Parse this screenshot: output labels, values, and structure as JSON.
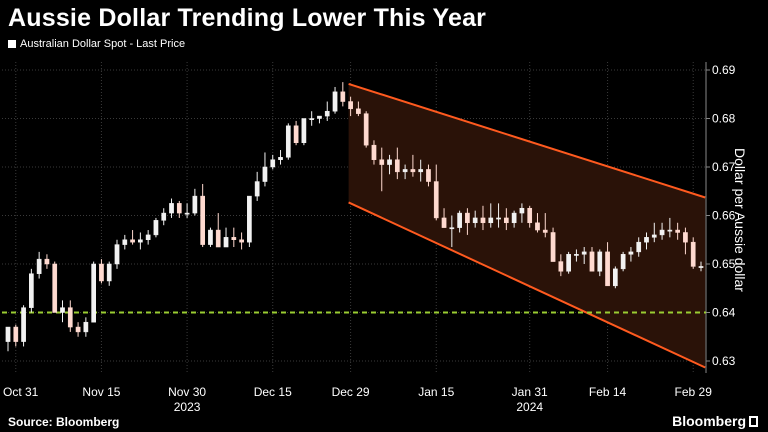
{
  "header": {
    "title": "Aussie Dollar Trending Lower This Year"
  },
  "footer": {
    "source": "Source: Bloomberg",
    "brand": "Bloomberg"
  },
  "chart_data": {
    "type": "candlestick",
    "legend": [
      "Australian Dollar Spot - Last Price"
    ],
    "legend_placement": "top-left",
    "ylabel": "Dollar per Aussie dollar",
    "ylim": [
      0.63,
      0.69
    ],
    "y_ticks": [
      "0.69",
      "0.68",
      "0.67",
      "0.66",
      "0.65",
      "0.64",
      "0.63"
    ],
    "grid": true,
    "x_ticks": [
      "Oct 31",
      "Nov 15",
      "Nov 30",
      "Dec 15",
      "Dec 29",
      "Jan 15",
      "Jan 31",
      "Feb 14",
      "Feb 29"
    ],
    "x_tick_years": [
      {
        "label": "2023",
        "under": "Nov 30"
      },
      {
        "label": "2024",
        "under": "Jan 31"
      }
    ],
    "reference_line": {
      "y": 0.64,
      "style": "dashed",
      "color": "#9acd32"
    },
    "trend_channel": {
      "start_date": "Dec 29",
      "end_date": "Feb 29",
      "upper": [
        0.687,
        0.6645
      ],
      "lower": [
        0.6625,
        0.6298
      ],
      "line_color": "#ff5a1f",
      "fill_color": "#2a1208"
    },
    "candle_colors": {
      "up": "#f2f2f2",
      "down": "#ffdad0"
    },
    "candles": [
      {
        "d": "Oct 30",
        "o": 0.634,
        "h": 0.637,
        "l": 0.632,
        "c": 0.637
      },
      {
        "d": "Oct 31",
        "o": 0.637,
        "h": 0.6375,
        "l": 0.633,
        "c": 0.634
      },
      {
        "d": "Nov 1",
        "o": 0.634,
        "h": 0.6415,
        "l": 0.633,
        "c": 0.641
      },
      {
        "d": "Nov 2",
        "o": 0.641,
        "h": 0.649,
        "l": 0.64,
        "c": 0.648
      },
      {
        "d": "Nov 3",
        "o": 0.648,
        "h": 0.6525,
        "l": 0.647,
        "c": 0.651
      },
      {
        "d": "Nov 6",
        "o": 0.651,
        "h": 0.652,
        "l": 0.649,
        "c": 0.65
      },
      {
        "d": "Nov 7",
        "o": 0.65,
        "h": 0.6505,
        "l": 0.64,
        "c": 0.64
      },
      {
        "d": "Nov 8",
        "o": 0.64,
        "h": 0.6425,
        "l": 0.638,
        "c": 0.641
      },
      {
        "d": "Nov 9",
        "o": 0.641,
        "h": 0.6425,
        "l": 0.636,
        "c": 0.637
      },
      {
        "d": "Nov 10",
        "o": 0.637,
        "h": 0.638,
        "l": 0.635,
        "c": 0.636
      },
      {
        "d": "Nov 13",
        "o": 0.636,
        "h": 0.639,
        "l": 0.635,
        "c": 0.638
      },
      {
        "d": "Nov 14",
        "o": 0.638,
        "h": 0.6505,
        "l": 0.638,
        "c": 0.65
      },
      {
        "d": "Nov 15",
        "o": 0.65,
        "h": 0.651,
        "l": 0.646,
        "c": 0.6465
      },
      {
        "d": "Nov 16",
        "o": 0.6465,
        "h": 0.6505,
        "l": 0.6455,
        "c": 0.65
      },
      {
        "d": "Nov 17",
        "o": 0.65,
        "h": 0.655,
        "l": 0.649,
        "c": 0.654
      },
      {
        "d": "Nov 20",
        "o": 0.654,
        "h": 0.656,
        "l": 0.653,
        "c": 0.655
      },
      {
        "d": "Nov 21",
        "o": 0.655,
        "h": 0.657,
        "l": 0.654,
        "c": 0.6545
      },
      {
        "d": "Nov 22",
        "o": 0.6545,
        "h": 0.6565,
        "l": 0.653,
        "c": 0.655
      },
      {
        "d": "Nov 23",
        "o": 0.655,
        "h": 0.657,
        "l": 0.654,
        "c": 0.656
      },
      {
        "d": "Nov 24",
        "o": 0.656,
        "h": 0.6595,
        "l": 0.6555,
        "c": 0.659
      },
      {
        "d": "Nov 27",
        "o": 0.659,
        "h": 0.6615,
        "l": 0.658,
        "c": 0.6605
      },
      {
        "d": "Nov 28",
        "o": 0.6605,
        "h": 0.6635,
        "l": 0.6595,
        "c": 0.6625
      },
      {
        "d": "Nov 29",
        "o": 0.6625,
        "h": 0.663,
        "l": 0.6595,
        "c": 0.6605
      },
      {
        "d": "Nov 30",
        "o": 0.6605,
        "h": 0.6625,
        "l": 0.6595,
        "c": 0.6605
      },
      {
        "d": "Dec 1",
        "o": 0.6605,
        "h": 0.6655,
        "l": 0.66,
        "c": 0.664
      },
      {
        "d": "Dec 4",
        "o": 0.664,
        "h": 0.6665,
        "l": 0.6535,
        "c": 0.654
      },
      {
        "d": "Dec 5",
        "o": 0.654,
        "h": 0.6575,
        "l": 0.6535,
        "c": 0.657
      },
      {
        "d": "Dec 6",
        "o": 0.657,
        "h": 0.6605,
        "l": 0.6535,
        "c": 0.6535
      },
      {
        "d": "Dec 7",
        "o": 0.6535,
        "h": 0.6575,
        "l": 0.6535,
        "c": 0.6555
      },
      {
        "d": "Dec 8",
        "o": 0.6555,
        "h": 0.6575,
        "l": 0.6535,
        "c": 0.655
      },
      {
        "d": "Dec 11",
        "o": 0.655,
        "h": 0.6565,
        "l": 0.653,
        "c": 0.6545
      },
      {
        "d": "Dec 12",
        "o": 0.6545,
        "h": 0.664,
        "l": 0.6535,
        "c": 0.664
      },
      {
        "d": "Dec 13",
        "o": 0.664,
        "h": 0.669,
        "l": 0.663,
        "c": 0.667
      },
      {
        "d": "Dec 14",
        "o": 0.667,
        "h": 0.673,
        "l": 0.666,
        "c": 0.67
      },
      {
        "d": "Dec 15",
        "o": 0.67,
        "h": 0.6725,
        "l": 0.6695,
        "c": 0.6715
      },
      {
        "d": "Dec 18",
        "o": 0.6715,
        "h": 0.6735,
        "l": 0.6705,
        "c": 0.672
      },
      {
        "d": "Dec 19",
        "o": 0.672,
        "h": 0.679,
        "l": 0.6715,
        "c": 0.6785
      },
      {
        "d": "Dec 20",
        "o": 0.6785,
        "h": 0.6795,
        "l": 0.6745,
        "c": 0.675
      },
      {
        "d": "Dec 21",
        "o": 0.675,
        "h": 0.68,
        "l": 0.6745,
        "c": 0.68
      },
      {
        "d": "Dec 22",
        "o": 0.68,
        "h": 0.6815,
        "l": 0.6785,
        "c": 0.68
      },
      {
        "d": "Dec 25",
        "o": 0.68,
        "h": 0.6805,
        "l": 0.679,
        "c": 0.6805
      },
      {
        "d": "Dec 26",
        "o": 0.6805,
        "h": 0.6835,
        "l": 0.6795,
        "c": 0.6815
      },
      {
        "d": "Dec 27",
        "o": 0.6815,
        "h": 0.6865,
        "l": 0.681,
        "c": 0.6855
      },
      {
        "d": "Dec 28",
        "o": 0.6855,
        "h": 0.6875,
        "l": 0.6825,
        "c": 0.6835
      },
      {
        "d": "Dec 29",
        "o": 0.6835,
        "h": 0.6845,
        "l": 0.6805,
        "c": 0.682
      },
      {
        "d": "Jan 1",
        "o": 0.682,
        "h": 0.6835,
        "l": 0.6805,
        "c": 0.681
      },
      {
        "d": "Jan 2",
        "o": 0.681,
        "h": 0.6815,
        "l": 0.674,
        "c": 0.6745
      },
      {
        "d": "Jan 3",
        "o": 0.6745,
        "h": 0.6755,
        "l": 0.6705,
        "c": 0.6715
      },
      {
        "d": "Jan 4",
        "o": 0.6715,
        "h": 0.674,
        "l": 0.665,
        "c": 0.6705
      },
      {
        "d": "Jan 5",
        "o": 0.6705,
        "h": 0.6725,
        "l": 0.6685,
        "c": 0.6715
      },
      {
        "d": "Jan 8",
        "o": 0.6715,
        "h": 0.674,
        "l": 0.6675,
        "c": 0.669
      },
      {
        "d": "Jan 9",
        "o": 0.669,
        "h": 0.6705,
        "l": 0.6675,
        "c": 0.6695
      },
      {
        "d": "Jan 10",
        "o": 0.6695,
        "h": 0.6725,
        "l": 0.668,
        "c": 0.669
      },
      {
        "d": "Jan 11",
        "o": 0.669,
        "h": 0.6715,
        "l": 0.667,
        "c": 0.6695
      },
      {
        "d": "Jan 12",
        "o": 0.6695,
        "h": 0.6705,
        "l": 0.666,
        "c": 0.667
      },
      {
        "d": "Jan 15",
        "o": 0.667,
        "h": 0.6705,
        "l": 0.659,
        "c": 0.6595
      },
      {
        "d": "Jan 16",
        "o": 0.6595,
        "h": 0.6615,
        "l": 0.6575,
        "c": 0.6575
      },
      {
        "d": "Jan 17",
        "o": 0.6575,
        "h": 0.66,
        "l": 0.6535,
        "c": 0.6575
      },
      {
        "d": "Jan 18",
        "o": 0.6575,
        "h": 0.661,
        "l": 0.6565,
        "c": 0.6605
      },
      {
        "d": "Jan 19",
        "o": 0.6605,
        "h": 0.6615,
        "l": 0.656,
        "c": 0.6585
      },
      {
        "d": "Jan 22",
        "o": 0.6585,
        "h": 0.661,
        "l": 0.6575,
        "c": 0.6595
      },
      {
        "d": "Jan 23",
        "o": 0.6595,
        "h": 0.662,
        "l": 0.657,
        "c": 0.6585
      },
      {
        "d": "Jan 24",
        "o": 0.6585,
        "h": 0.6625,
        "l": 0.6575,
        "c": 0.6595
      },
      {
        "d": "Jan 25",
        "o": 0.6595,
        "h": 0.6625,
        "l": 0.6575,
        "c": 0.6595
      },
      {
        "d": "Jan 26",
        "o": 0.6595,
        "h": 0.6615,
        "l": 0.657,
        "c": 0.6585
      },
      {
        "d": "Jan 29",
        "o": 0.6585,
        "h": 0.661,
        "l": 0.6575,
        "c": 0.6605
      },
      {
        "d": "Jan 30",
        "o": 0.6605,
        "h": 0.6625,
        "l": 0.6585,
        "c": 0.6615
      },
      {
        "d": "Jan 31",
        "o": 0.6615,
        "h": 0.662,
        "l": 0.6575,
        "c": 0.6585
      },
      {
        "d": "Feb 1",
        "o": 0.6585,
        "h": 0.6605,
        "l": 0.6565,
        "c": 0.657
      },
      {
        "d": "Feb 2",
        "o": 0.657,
        "h": 0.6605,
        "l": 0.6555,
        "c": 0.6565
      },
      {
        "d": "Feb 5",
        "o": 0.6565,
        "h": 0.6575,
        "l": 0.6505,
        "c": 0.6505
      },
      {
        "d": "Feb 6",
        "o": 0.6505,
        "h": 0.652,
        "l": 0.6475,
        "c": 0.6485
      },
      {
        "d": "Feb 7",
        "o": 0.6485,
        "h": 0.6525,
        "l": 0.648,
        "c": 0.652
      },
      {
        "d": "Feb 8",
        "o": 0.652,
        "h": 0.653,
        "l": 0.6505,
        "c": 0.652
      },
      {
        "d": "Feb 9",
        "o": 0.652,
        "h": 0.6535,
        "l": 0.65,
        "c": 0.6525
      },
      {
        "d": "Feb 12",
        "o": 0.6525,
        "h": 0.6535,
        "l": 0.6485,
        "c": 0.6485
      },
      {
        "d": "Feb 13",
        "o": 0.6485,
        "h": 0.653,
        "l": 0.6475,
        "c": 0.6525
      },
      {
        "d": "Feb 14",
        "o": 0.6525,
        "h": 0.6545,
        "l": 0.6455,
        "c": 0.6455
      },
      {
        "d": "Feb 15",
        "o": 0.6455,
        "h": 0.6495,
        "l": 0.645,
        "c": 0.649
      },
      {
        "d": "Feb 16",
        "o": 0.649,
        "h": 0.6525,
        "l": 0.6485,
        "c": 0.652
      },
      {
        "d": "Feb 19",
        "o": 0.652,
        "h": 0.6535,
        "l": 0.6505,
        "c": 0.6525
      },
      {
        "d": "Feb 20",
        "o": 0.6525,
        "h": 0.6555,
        "l": 0.6515,
        "c": 0.6545
      },
      {
        "d": "Feb 21",
        "o": 0.6545,
        "h": 0.6565,
        "l": 0.653,
        "c": 0.6555
      },
      {
        "d": "Feb 22",
        "o": 0.6555,
        "h": 0.6585,
        "l": 0.6545,
        "c": 0.656
      },
      {
        "d": "Feb 23",
        "o": 0.656,
        "h": 0.6585,
        "l": 0.655,
        "c": 0.657
      },
      {
        "d": "Feb 26",
        "o": 0.657,
        "h": 0.6595,
        "l": 0.6555,
        "c": 0.657
      },
      {
        "d": "Feb 27",
        "o": 0.657,
        "h": 0.6585,
        "l": 0.655,
        "c": 0.6565
      },
      {
        "d": "Feb 28",
        "o": 0.6565,
        "h": 0.6575,
        "l": 0.652,
        "c": 0.6545
      },
      {
        "d": "Feb 29",
        "o": 0.6545,
        "h": 0.6555,
        "l": 0.649,
        "c": 0.6495
      },
      {
        "d": "Mar 1",
        "o": 0.6495,
        "h": 0.6505,
        "l": 0.6485,
        "c": 0.6495
      }
    ]
  }
}
